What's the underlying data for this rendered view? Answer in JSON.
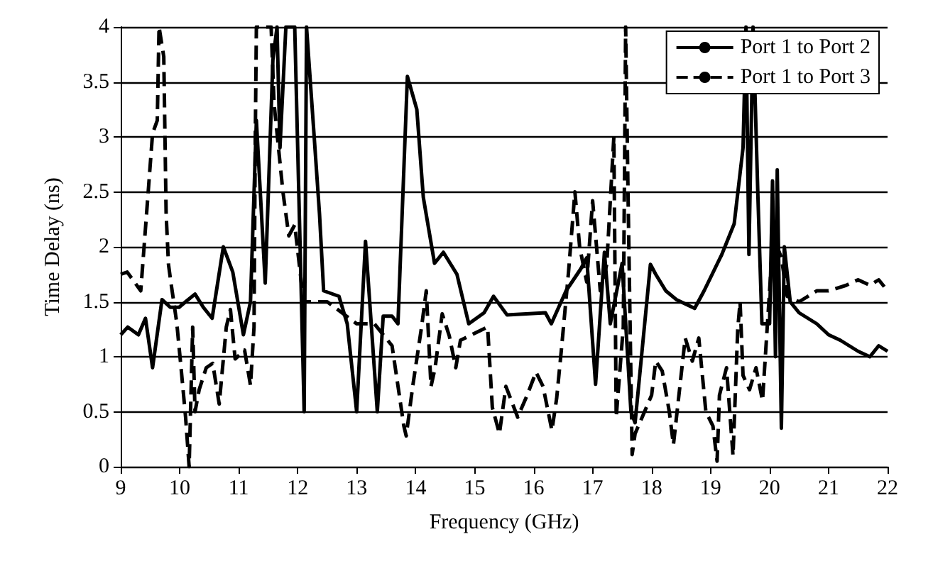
{
  "chart_data": {
    "type": "line",
    "xlabel": "Frequency (GHz)",
    "ylabel": "Time Delay (ns)",
    "xlim": [
      9,
      22
    ],
    "xticks": [
      9,
      10,
      11,
      12,
      13,
      14,
      15,
      16,
      17,
      18,
      19,
      20,
      21,
      22
    ],
    "ylim": [
      0,
      4
    ],
    "yticks": [
      0,
      0.5,
      1,
      1.5,
      2,
      2.5,
      3,
      3.5,
      4
    ],
    "grid": "y",
    "legend": "top right",
    "marker": "none",
    "series": [
      {
        "name": "Port 1 to Port 2",
        "color": "#000000",
        "line_style": "solid",
        "x": [
          9,
          9.12,
          9.3,
          9.42,
          9.54,
          9.7,
          9.84,
          9.99,
          10.1,
          10.26,
          10.4,
          10.55,
          10.74,
          10.9,
          11.08,
          11.2,
          11.3,
          11.45,
          11.58,
          11.65,
          11.7,
          11.8,
          11.95,
          12.11,
          12.15,
          12.28,
          12.37,
          12.44,
          12.7,
          12.84,
          13,
          13.15,
          13.35,
          13.45,
          13.6,
          13.7,
          13.86,
          14.02,
          14.13,
          14.32,
          14.47,
          14.7,
          14.9,
          15.16,
          15.32,
          15.55,
          16.2,
          16.3,
          16.55,
          16.8,
          16.9,
          17.05,
          17.2,
          17.3,
          17.5,
          17.65,
          17.72,
          17.98,
          18.07,
          18.24,
          18.42,
          18.73,
          18.89,
          19.19,
          19.4,
          19.55,
          19.6,
          19.65,
          19.72,
          19.8,
          19.87,
          20,
          20.05,
          20.1,
          20.13,
          20.2,
          20.25,
          20.35,
          20.5,
          20.8,
          21,
          21.2,
          21.5,
          21.7,
          21.85,
          22
        ],
        "values": [
          1.2,
          1.27,
          1.2,
          1.35,
          0.9,
          1.52,
          1.45,
          1.45,
          1.5,
          1.57,
          1.45,
          1.35,
          2,
          1.77,
          1.2,
          1.5,
          3.15,
          1.67,
          3.7,
          4,
          2.9,
          4,
          4,
          0.5,
          4,
          3,
          2.3,
          1.6,
          1.55,
          1.3,
          0.5,
          2.05,
          0.5,
          1.37,
          1.37,
          1.3,
          3.55,
          3.25,
          2.45,
          1.85,
          1.95,
          1.75,
          1.3,
          1.4,
          1.55,
          1.38,
          1.4,
          1.3,
          1.6,
          1.8,
          1.9,
          0.75,
          1.95,
          1.3,
          1.85,
          0.5,
          0.4,
          1.84,
          1.75,
          1.6,
          1.52,
          1.44,
          1.6,
          1.93,
          2.21,
          2.9,
          4,
          1.93,
          4,
          2.5,
          1.3,
          1.3,
          2.6,
          1,
          2.7,
          0.35,
          2,
          1.5,
          1.4,
          1.3,
          1.2,
          1.15,
          1.05,
          1,
          1.1,
          1.05
        ]
      },
      {
        "name": "Port 1 to Port 3",
        "color": "#000000",
        "line_style": "dashed",
        "x": [
          9,
          9.11,
          9.34,
          9.42,
          9.54,
          9.62,
          9.65,
          9.73,
          9.77,
          9.81,
          9.85,
          9.95,
          10.03,
          10.1,
          10.16,
          10.22,
          10.26,
          10.33,
          10.45,
          10.56,
          10.67,
          10.79,
          10.86,
          10.94,
          11.1,
          11.2,
          11.26,
          11.28,
          11.3,
          11.55,
          11.6,
          11.75,
          11.85,
          11.95,
          12.1,
          12.5,
          13,
          13.3,
          13.6,
          13.8,
          13.84,
          13.95,
          14.1,
          14.18,
          14.26,
          14.33,
          14.45,
          14.57,
          14.68,
          14.76,
          15.22,
          15.3,
          15.42,
          15.53,
          15.73,
          15.89,
          16.04,
          16.16,
          16.31,
          16.39,
          16.47,
          16.59,
          16.7,
          16.78,
          16.9,
          17,
          17.13,
          17.24,
          17.36,
          17.4,
          17.52,
          17.56,
          17.6,
          17.67,
          17.72,
          18,
          18.07,
          18.18,
          18.3,
          18.37,
          18.5,
          18.57,
          18.69,
          18.8,
          18.92,
          19.04,
          19.11,
          19.15,
          19.27,
          19.38,
          19.46,
          19.5,
          19.55,
          19.66,
          19.77,
          19.88,
          20.06,
          20.2,
          20.3,
          20.5,
          20.8,
          21,
          21.3,
          21.5,
          21.7,
          21.85,
          22
        ],
        "values": [
          1.75,
          1.77,
          1.6,
          2.17,
          3.03,
          3.15,
          4,
          3.73,
          2.3,
          1.84,
          1.68,
          1.31,
          0.86,
          0.45,
          0,
          1.27,
          0.5,
          0.7,
          0.9,
          0.94,
          0.57,
          1.27,
          1.43,
          0.98,
          1.06,
          0.74,
          1.27,
          2.9,
          4,
          4,
          3.3,
          2.5,
          2.1,
          2.2,
          1.5,
          1.5,
          1.3,
          1.3,
          1.1,
          0.37,
          0.28,
          0.73,
          1.27,
          1.6,
          0.73,
          0.9,
          1.39,
          1.19,
          0.9,
          1.15,
          1.27,
          0.54,
          0.3,
          0.73,
          0.45,
          0.65,
          0.86,
          0.73,
          0.33,
          0.62,
          1.06,
          1.76,
          2.5,
          2,
          1.68,
          2.42,
          1.6,
          1.84,
          3,
          0.45,
          1.27,
          4,
          2.5,
          0.11,
          0.3,
          0.65,
          0.96,
          0.87,
          0.5,
          0.2,
          0.83,
          1.17,
          0.96,
          1.17,
          0.5,
          0.37,
          0.05,
          0.65,
          0.9,
          0.1,
          1.25,
          1.5,
          0.83,
          0.7,
          0.9,
          0.6,
          2.1,
          1.9,
          1.55,
          1.5,
          1.6,
          1.6,
          1.65,
          1.7,
          1.65,
          1.7,
          1.6
        ]
      }
    ]
  }
}
